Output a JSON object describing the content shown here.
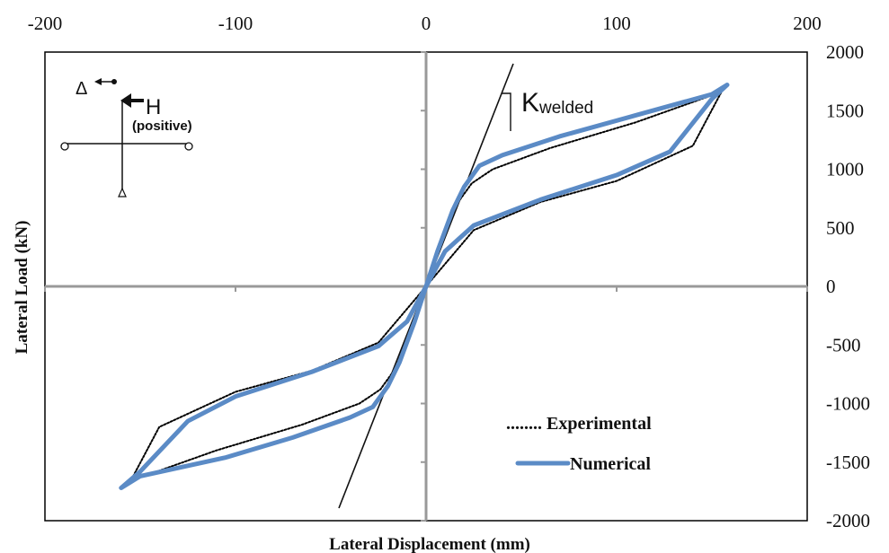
{
  "chart_data": {
    "type": "line",
    "xlabel": "Lateral Displacement (mm)",
    "ylabel": "Lateral Load (kN)",
    "xlim": [
      -200,
      200
    ],
    "ylim": [
      -2000,
      2000
    ],
    "x_ticks": [
      "-200",
      "-100",
      "0",
      "100",
      "200"
    ],
    "y_ticks": [
      "2000",
      "1500",
      "1000",
      "500",
      "0",
      "-500",
      "-1000",
      "-1500",
      "-2000"
    ],
    "legend": {
      "position": "bottom-right",
      "experimental_label": "........ Experimental",
      "numerical_label": "Numerical"
    },
    "annotation": {
      "k_main": "K",
      "k_sub": "welded",
      "inset_delta": "Δ",
      "inset_h": "H",
      "inset_positive": "(positive)"
    },
    "colors": {
      "numerical": "#5b8bc6",
      "experimental": "#000000"
    },
    "series": [
      {
        "name": "Numerical",
        "x": [
          0,
          6,
          14,
          20,
          28,
          40,
          70,
          110,
          150,
          158,
          150,
          128,
          100,
          60,
          25,
          10,
          0,
          -6,
          -14,
          -20,
          -28,
          -40,
          -70,
          -105,
          -150,
          -160,
          -150,
          -125,
          -100,
          -60,
          -25,
          -10,
          0
        ],
        "y": [
          0,
          300,
          650,
          850,
          1030,
          1120,
          1280,
          1460,
          1640,
          1720,
          1600,
          1150,
          950,
          740,
          520,
          300,
          0,
          -300,
          -650,
          -850,
          -1030,
          -1120,
          -1290,
          -1460,
          -1620,
          -1720,
          -1580,
          -1150,
          -940,
          -730,
          -510,
          -300,
          0
        ]
      },
      {
        "name": "Experimental",
        "x": [
          0,
          8,
          16,
          24,
          35,
          65,
          110,
          155,
          140,
          100,
          60,
          25,
          0,
          -8,
          -16,
          -24,
          -35,
          -65,
          -110,
          -155,
          -140,
          -100,
          -60,
          -25,
          0
        ],
        "y": [
          0,
          350,
          700,
          880,
          1000,
          1180,
          1400,
          1660,
          1200,
          900,
          720,
          480,
          0,
          -350,
          -700,
          -880,
          -1000,
          -1180,
          -1400,
          -1660,
          -1200,
          -900,
          -720,
          -480,
          0
        ]
      }
    ]
  }
}
